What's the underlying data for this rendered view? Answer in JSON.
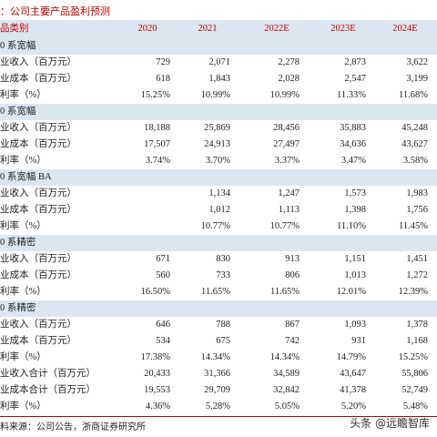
{
  "title": "：公司主要产品盈利预测",
  "table": {
    "header": [
      "品类别",
      "2020",
      "2021",
      "2022E",
      "2023E",
      "2024E"
    ],
    "sections": [
      {
        "name": "0 系宽幅",
        "rows": [
          [
            "业收入（百万元）",
            "729",
            "2,071",
            "2,278",
            "2,873",
            "3,622"
          ],
          [
            "业成本（百万元）",
            "618",
            "1,843",
            "2,028",
            "2,547",
            "3,199"
          ],
          [
            "利率（%）",
            "15.25%",
            "10.99%",
            "10.99%",
            "11.33%",
            "11.68%"
          ]
        ]
      },
      {
        "name": "0 系宽幅",
        "rows": [
          [
            "业收入（百万元）",
            "18,188",
            "25,869",
            "28,456",
            "35,883",
            "45,248"
          ],
          [
            "业成本（百万元）",
            "17,507",
            "24,913",
            "27,497",
            "34,636",
            "43,627"
          ],
          [
            "利率（%）",
            "3.74%",
            "3.70%",
            "3.37%",
            "3.47%",
            "3.58%"
          ]
        ]
      },
      {
        "name": "0 系宽幅 BA",
        "rows": [
          [
            "业收入（百万元）",
            null,
            "1,134",
            "1,247",
            "1,573",
            "1,983"
          ],
          [
            "业成本（百万元）",
            null,
            "1,012",
            "1,113",
            "1,398",
            "1,756"
          ],
          [
            "利率（%）",
            null,
            "10.77%",
            "10.77%",
            "11.10%",
            "11.45%"
          ]
        ]
      },
      {
        "name": "0 系精密",
        "rows": [
          [
            "业收入（百万元）",
            "671",
            "830",
            "913",
            "1,151",
            "1,451"
          ],
          [
            "业成本（百万元）",
            "560",
            "733",
            "806",
            "1,013",
            "1,272"
          ],
          [
            "利率（%）",
            "16.50%",
            "11.65%",
            "11.65%",
            "12.01%",
            "12.39%"
          ]
        ]
      },
      {
        "name": "0 系精密",
        "rows": [
          [
            "业收入（百万元）",
            "646",
            "788",
            "867",
            "1,093",
            "1,378"
          ],
          [
            "业成本（百万元）",
            "534",
            "675",
            "742",
            "931",
            "1,168"
          ],
          [
            "利率（%）",
            "17.38%",
            "14.34%",
            "14.34%",
            "14.79%",
            "15.25%"
          ]
        ]
      }
    ],
    "totals": [
      [
        "业收入合计（百万元）",
        "20,433",
        "31,366",
        "34,589",
        "43,647",
        "55,806"
      ],
      [
        "业成本合计（百万元）",
        "19,553",
        "29,709",
        "32,842",
        "41,378",
        "52,749"
      ],
      [
        "利率（%）",
        "4.36%",
        "5.28%",
        "5.05%",
        "5.20%",
        "5.48%"
      ]
    ]
  },
  "source": "料来源：公司公告，浙商证券研究所",
  "watermark": "头条 @远瞻智库"
}
